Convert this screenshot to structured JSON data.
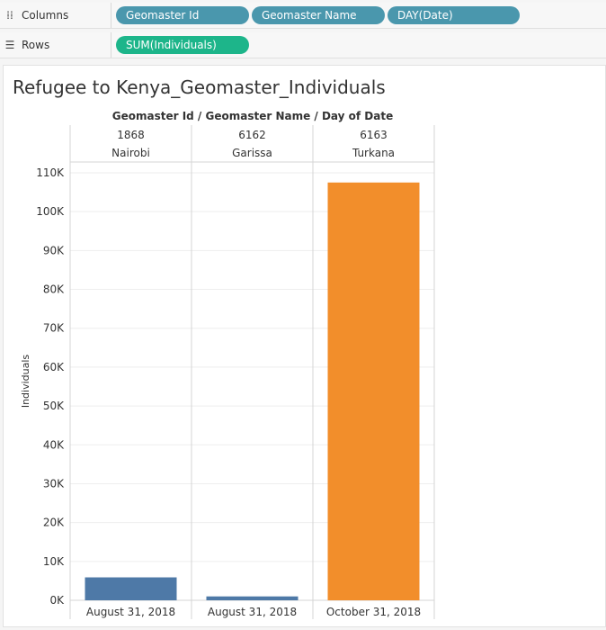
{
  "shelves": {
    "columns_label": "Columns",
    "rows_label": "Rows",
    "columns_pills": [
      "Geomaster Id",
      "Geomaster Name",
      "DAY(Date)"
    ],
    "rows_pills": [
      "SUM(Individuals)"
    ]
  },
  "sheet": {
    "title": "Refugee to Kenya_Geomaster_Individuals",
    "header_title": "Geomaster Id  /  Geomaster Name  /  Day of Date"
  },
  "colors": {
    "bar_blue": "#4e79a7",
    "bar_orange": "#f28e2b",
    "pill_dimension": "#4a97ad",
    "pill_measure": "#1db58a"
  },
  "chart_data": {
    "type": "bar",
    "ylabel": "Individuals",
    "ylim": [
      0,
      110000
    ],
    "y_ticks": [
      0,
      10000,
      20000,
      30000,
      40000,
      50000,
      60000,
      70000,
      80000,
      90000,
      100000,
      110000
    ],
    "y_tick_labels": [
      "0K",
      "10K",
      "20K",
      "30K",
      "40K",
      "50K",
      "60K",
      "70K",
      "80K",
      "90K",
      "100K",
      "110K"
    ],
    "grid": true,
    "panes": [
      {
        "geomaster_id": "1868",
        "geomaster_name": "Nairobi",
        "date": "August 31, 2018",
        "value": 5900,
        "color": "#4e79a7"
      },
      {
        "geomaster_id": "6162",
        "geomaster_name": "Garissa",
        "date": "August 31, 2018",
        "value": 1000,
        "color": "#4e79a7"
      },
      {
        "geomaster_id": "6163",
        "geomaster_name": "Turkana",
        "date": "October 31, 2018",
        "value": 107500,
        "color": "#f28e2b"
      }
    ]
  }
}
